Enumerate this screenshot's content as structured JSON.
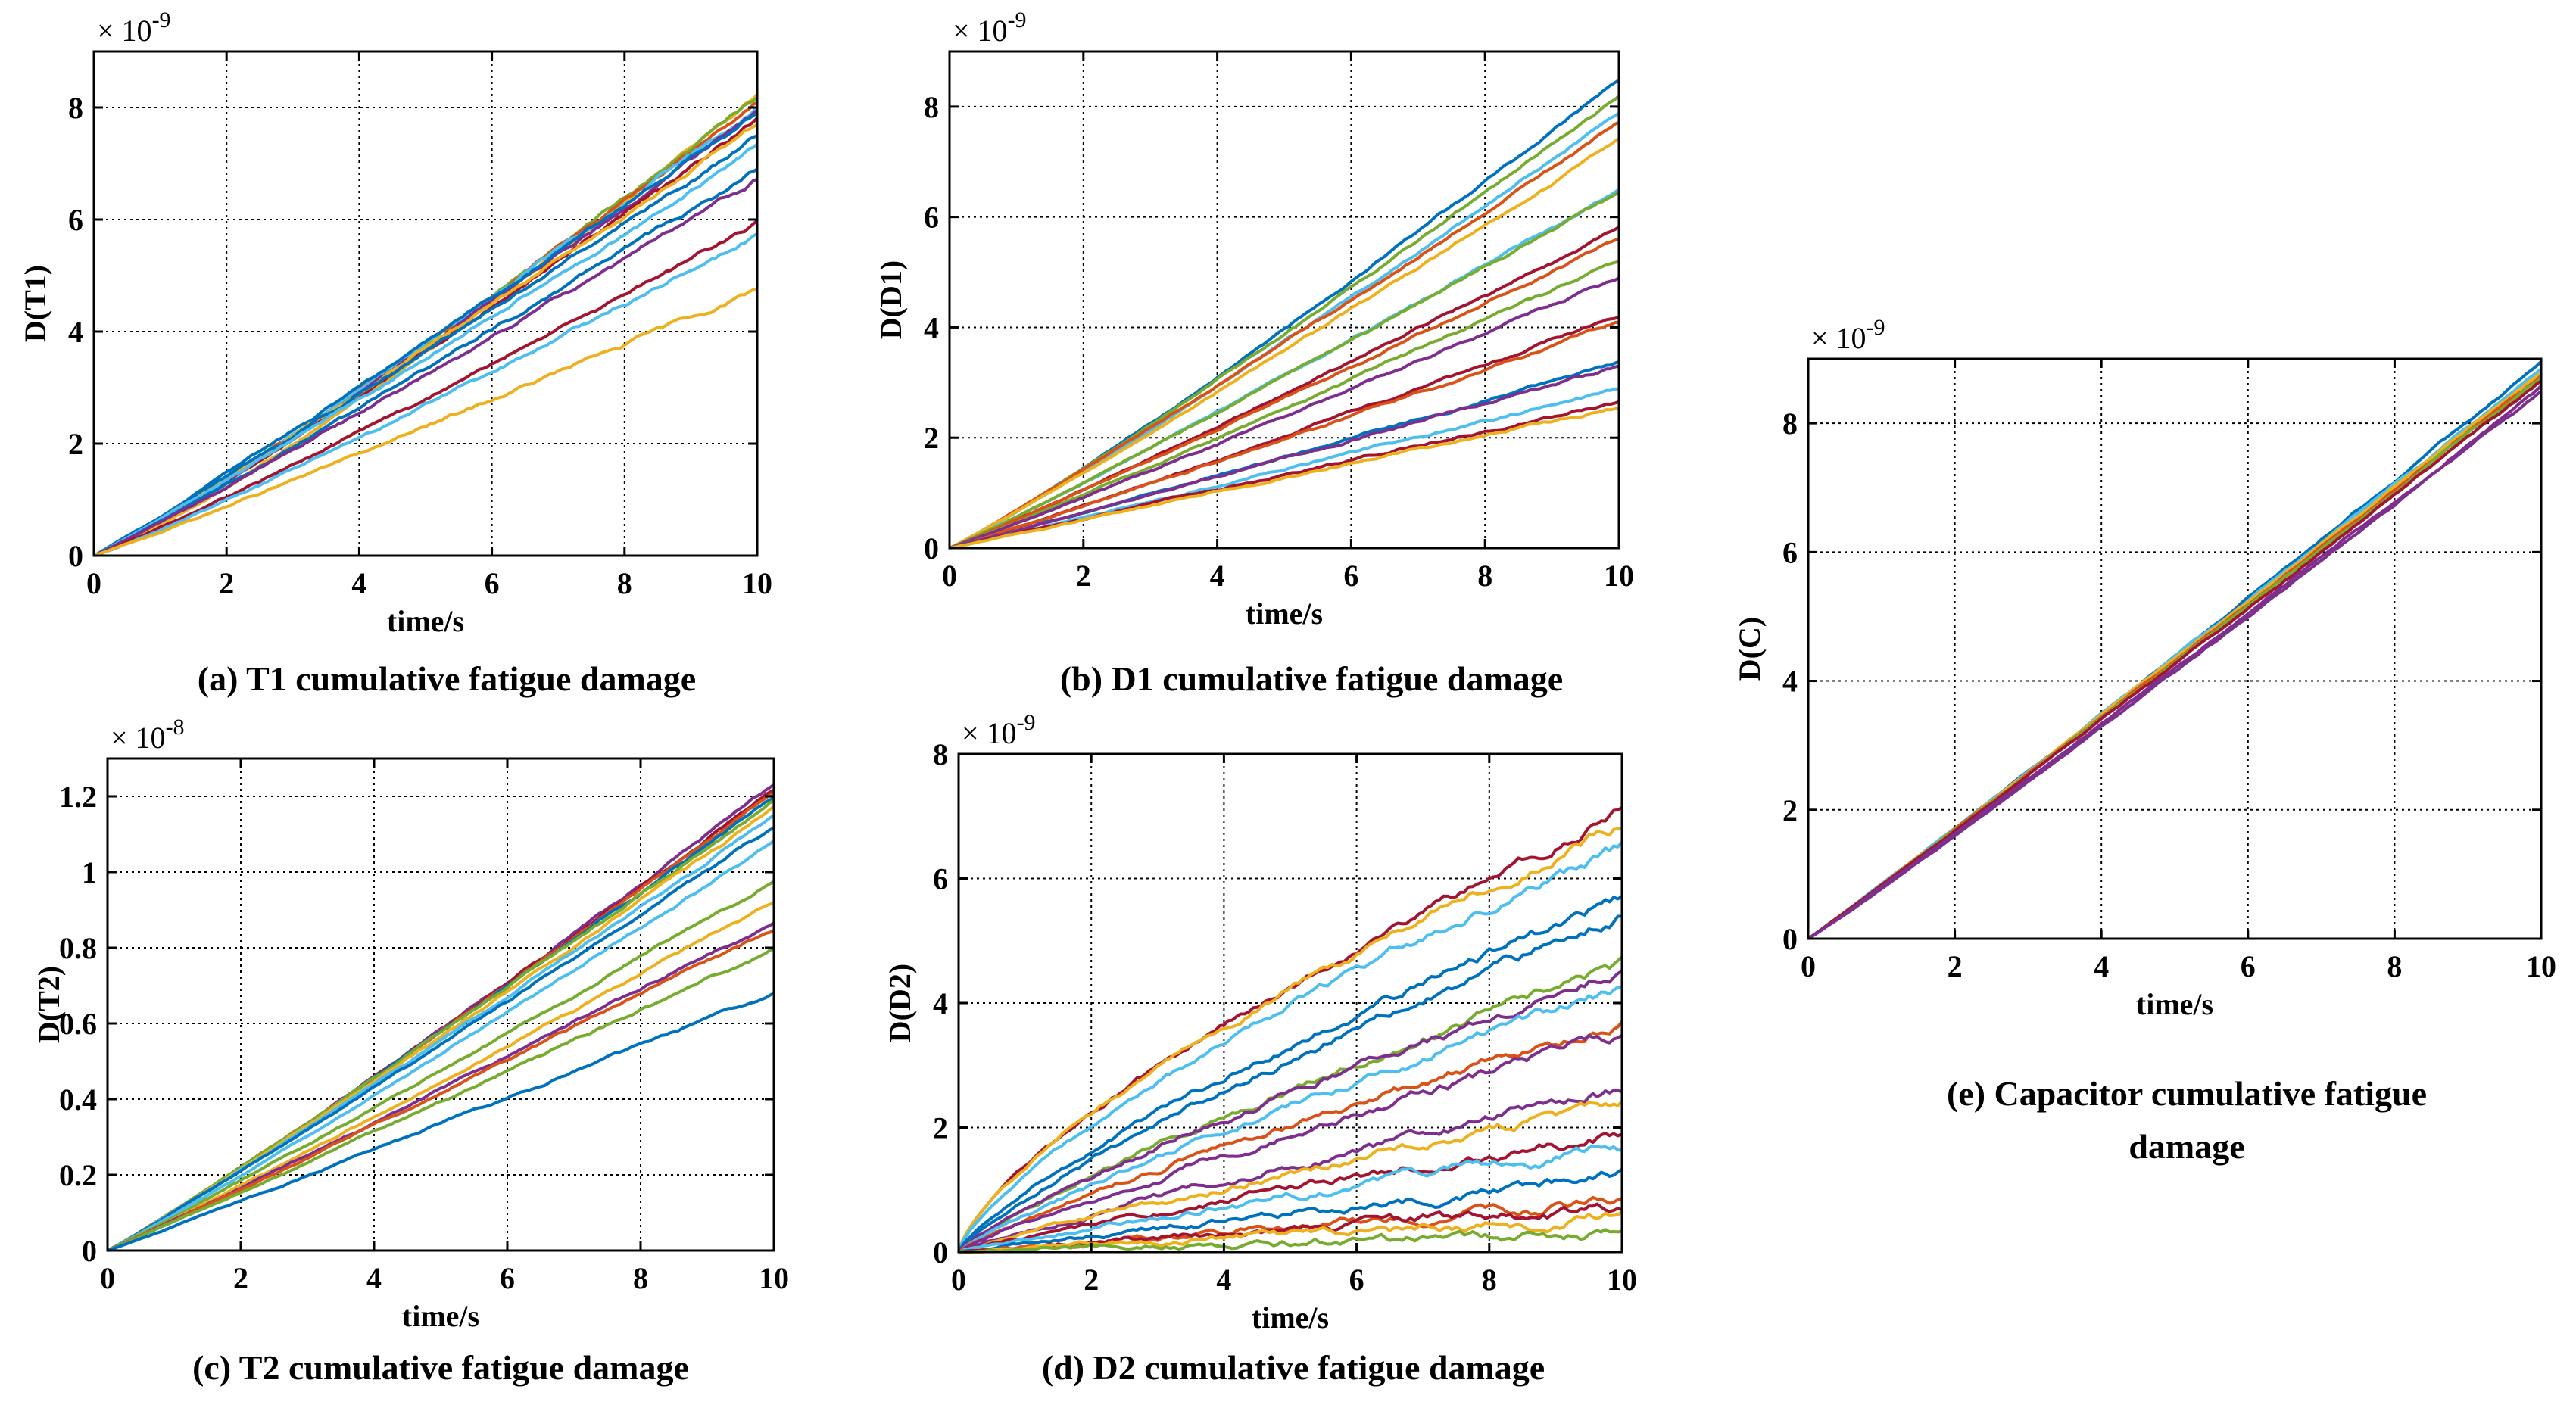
{
  "palette": [
    "#0072BD",
    "#D95319",
    "#EDB120",
    "#7E2F8E",
    "#77AC30",
    "#4DBEEE",
    "#A2142F"
  ],
  "chart_data": [
    {
      "id": "a",
      "type": "line",
      "caption": "(a) T1 cumulative fatigue damage",
      "xlabel": "time/s",
      "ylabel": "D(T1)",
      "exponent": "× 10",
      "exponent_power": "-9",
      "xlim": [
        0,
        10
      ],
      "ylim": [
        0,
        9
      ],
      "xticks": [
        0,
        2,
        4,
        6,
        8,
        10
      ],
      "yticks": [
        0,
        2,
        4,
        6,
        8
      ],
      "xtick_labels": [
        "0",
        "2",
        "4",
        "6",
        "8",
        "10"
      ],
      "ytick_labels": [
        "0",
        "2",
        "4",
        "6",
        "8"
      ],
      "grid": true,
      "noise": 0.03,
      "series": [
        {
          "end": 8.25,
          "color": "#EDB120",
          "curve": 1.18
        },
        {
          "end": 8.2,
          "color": "#77AC30",
          "curve": 1.12
        },
        {
          "end": 8.1,
          "color": "#D95319",
          "curve": 1.1
        },
        {
          "end": 8.0,
          "color": "#4DBEEE",
          "curve": 1.08
        },
        {
          "end": 7.95,
          "color": "#7E2F8E",
          "curve": 1.1
        },
        {
          "end": 7.9,
          "color": "#0072BD",
          "curve": 1.05
        },
        {
          "end": 7.8,
          "color": "#A2142F",
          "curve": 1.1
        },
        {
          "end": 7.7,
          "color": "#EDB120",
          "curve": 1.06
        },
        {
          "end": 7.5,
          "color": "#0072BD",
          "curve": 1.04
        },
        {
          "end": 7.3,
          "color": "#4DBEEE",
          "curve": 1.05
        },
        {
          "end": 6.9,
          "color": "#0072BD",
          "curve": 1.05
        },
        {
          "end": 6.75,
          "color": "#7E2F8E",
          "curve": 1.06
        },
        {
          "end": 5.95,
          "color": "#A2142F",
          "curve": 1.08
        },
        {
          "end": 5.75,
          "color": "#4DBEEE",
          "curve": 1.1
        },
        {
          "end": 4.75,
          "color": "#EDB120",
          "curve": 1.05
        }
      ]
    },
    {
      "id": "b",
      "type": "line",
      "caption": "(b) D1 cumulative fatigue damage",
      "xlabel": "time/s",
      "ylabel": "D(D1)",
      "exponent": "× 10",
      "exponent_power": "-9",
      "xlim": [
        0,
        10
      ],
      "ylim": [
        0,
        9
      ],
      "xticks": [
        0,
        2,
        4,
        6,
        8,
        10
      ],
      "yticks": [
        0,
        2,
        4,
        6,
        8
      ],
      "xtick_labels": [
        "0",
        "2",
        "4",
        "6",
        "8",
        "10"
      ],
      "ytick_labels": [
        "0",
        "2",
        "4",
        "6",
        "8"
      ],
      "grid": true,
      "noise": 0.02,
      "series": [
        {
          "end": 8.5,
          "color": "#0072BD",
          "curve": 1.1
        },
        {
          "end": 8.2,
          "color": "#77AC30",
          "curve": 1.08
        },
        {
          "end": 7.9,
          "color": "#4DBEEE",
          "curve": 1.08
        },
        {
          "end": 7.7,
          "color": "#D95319",
          "curve": 1.05
        },
        {
          "end": 7.4,
          "color": "#EDB120",
          "curve": 1.05
        },
        {
          "end": 6.5,
          "color": "#4DBEEE",
          "curve": 1.06
        },
        {
          "end": 6.45,
          "color": "#77AC30",
          "curve": 1.05
        },
        {
          "end": 5.8,
          "color": "#A2142F",
          "curve": 1.06
        },
        {
          "end": 5.6,
          "color": "#D95319",
          "curve": 1.04
        },
        {
          "end": 5.2,
          "color": "#77AC30",
          "curve": 1.04
        },
        {
          "end": 4.9,
          "color": "#7E2F8E",
          "curve": 1.04
        },
        {
          "end": 4.2,
          "color": "#A2142F",
          "curve": 1.05
        },
        {
          "end": 4.1,
          "color": "#D95319",
          "curve": 1.04
        },
        {
          "end": 3.35,
          "color": "#0072BD",
          "curve": 1.02
        },
        {
          "end": 3.3,
          "color": "#7E2F8E",
          "curve": 1.02
        },
        {
          "end": 2.9,
          "color": "#4DBEEE",
          "curve": 1.03
        },
        {
          "end": 2.65,
          "color": "#A2142F",
          "curve": 1.0
        },
        {
          "end": 2.55,
          "color": "#EDB120",
          "curve": 1.0
        }
      ]
    },
    {
      "id": "c",
      "type": "line",
      "caption": "(c) T2 cumulative fatigue damage",
      "xlabel": "time/s",
      "ylabel": "D(T2)",
      "exponent": "× 10",
      "exponent_power": "-8",
      "xlim": [
        0,
        10
      ],
      "ylim": [
        0,
        1.3
      ],
      "xticks": [
        0,
        2,
        4,
        6,
        8,
        10
      ],
      "yticks": [
        0,
        0.2,
        0.4,
        0.6,
        0.8,
        1.0,
        1.2
      ],
      "xtick_labels": [
        "0",
        "2",
        "4",
        "6",
        "8",
        "10"
      ],
      "ytick_labels": [
        "0",
        "0.2",
        "0.4",
        "0.6",
        "0.8",
        "1",
        "1.2"
      ],
      "grid": true,
      "noise": 0.003,
      "series": [
        {
          "end": 1.23,
          "color": "#7E2F8E",
          "curve": 1.08
        },
        {
          "end": 1.22,
          "color": "#A2142F",
          "curve": 1.07
        },
        {
          "end": 1.21,
          "color": "#D95319",
          "curve": 1.06
        },
        {
          "end": 1.2,
          "color": "#0072BD",
          "curve": 1.06
        },
        {
          "end": 1.19,
          "color": "#77AC30",
          "curve": 1.05
        },
        {
          "end": 1.17,
          "color": "#EDB120",
          "curve": 1.05
        },
        {
          "end": 1.15,
          "color": "#4DBEEE",
          "curve": 1.05
        },
        {
          "end": 1.12,
          "color": "#0072BD",
          "curve": 1.04
        },
        {
          "end": 1.08,
          "color": "#4DBEEE",
          "curve": 1.05
        },
        {
          "end": 0.98,
          "color": "#77AC30",
          "curve": 1.04
        },
        {
          "end": 0.92,
          "color": "#EDB120",
          "curve": 1.04
        },
        {
          "end": 0.87,
          "color": "#7E2F8E",
          "curve": 1.03
        },
        {
          "end": 0.85,
          "color": "#D95319",
          "curve": 1.03
        },
        {
          "end": 0.8,
          "color": "#77AC30",
          "curve": 1.02
        },
        {
          "end": 0.68,
          "color": "#0072BD",
          "curve": 1.02
        }
      ]
    },
    {
      "id": "d",
      "type": "line",
      "caption": "(d) D2 cumulative fatigue damage",
      "xlabel": "time/s",
      "ylabel": "D(D2)",
      "exponent": "× 10",
      "exponent_power": "-9",
      "xlim": [
        0,
        10
      ],
      "ylim": [
        0,
        8
      ],
      "xticks": [
        0,
        2,
        4,
        6,
        8,
        10
      ],
      "yticks": [
        0,
        2,
        4,
        6,
        8
      ],
      "xtick_labels": [
        "0",
        "2",
        "4",
        "6",
        "8",
        "10"
      ],
      "ytick_labels": [
        "0",
        "2",
        "4",
        "6",
        "8"
      ],
      "grid": true,
      "noise": 0.06,
      "series": [
        {
          "end": 7.05,
          "color": "#A2142F",
          "curve": 0.72
        },
        {
          "end": 6.85,
          "color": "#EDB120",
          "curve": 0.7
        },
        {
          "end": 6.5,
          "color": "#4DBEEE",
          "curve": 0.72
        },
        {
          "end": 5.7,
          "color": "#0072BD",
          "curve": 0.78
        },
        {
          "end": 5.4,
          "color": "#0072BD",
          "curve": 0.8
        },
        {
          "end": 4.6,
          "color": "#77AC30",
          "curve": 0.82
        },
        {
          "end": 4.5,
          "color": "#7E2F8E",
          "curve": 0.82
        },
        {
          "end": 4.25,
          "color": "#4DBEEE",
          "curve": 0.85
        },
        {
          "end": 3.7,
          "color": "#D95319",
          "curve": 0.85
        },
        {
          "end": 3.5,
          "color": "#7E2F8E",
          "curve": 0.88
        },
        {
          "end": 2.6,
          "color": "#7E2F8E",
          "curve": 0.9
        },
        {
          "end": 2.35,
          "color": "#EDB120",
          "curve": 0.9
        },
        {
          "end": 1.9,
          "color": "#A2142F",
          "curve": 0.92
        },
        {
          "end": 1.7,
          "color": "#4DBEEE",
          "curve": 0.92
        },
        {
          "end": 1.2,
          "color": "#0072BD",
          "curve": 0.95
        },
        {
          "end": 0.8,
          "color": "#D95319",
          "curve": 0.97
        },
        {
          "end": 0.7,
          "color": "#A2142F",
          "curve": 0.97
        },
        {
          "end": 0.55,
          "color": "#EDB120",
          "curve": 0.98
        },
        {
          "end": 0.3,
          "color": "#77AC30",
          "curve": 1.0
        }
      ]
    },
    {
      "id": "e",
      "type": "line",
      "caption": "(e) Capacitor cumulative fatigue damage",
      "xlabel": "time/s",
      "ylabel": "D(C)",
      "exponent": "× 10",
      "exponent_power": "-9",
      "xlim": [
        0,
        10
      ],
      "ylim": [
        0,
        9
      ],
      "xticks": [
        0,
        2,
        4,
        6,
        8,
        10
      ],
      "yticks": [
        0,
        2,
        4,
        6,
        8
      ],
      "xtick_labels": [
        "0",
        "2",
        "4",
        "6",
        "8",
        "10"
      ],
      "ytick_labels": [
        "0",
        "2",
        "4",
        "6",
        "8"
      ],
      "grid": true,
      "noise": 0.015,
      "series": [
        {
          "end": 8.95,
          "color": "#0072BD",
          "curve": 1.03
        },
        {
          "end": 8.85,
          "color": "#4DBEEE",
          "curve": 1.02
        },
        {
          "end": 8.8,
          "color": "#EDB120",
          "curve": 1.02
        },
        {
          "end": 8.75,
          "color": "#D95319",
          "curve": 1.02
        },
        {
          "end": 8.7,
          "color": "#77AC30",
          "curve": 1.02
        },
        {
          "end": 8.65,
          "color": "#A2142F",
          "curve": 1.02
        },
        {
          "end": 8.55,
          "color": "#7E2F8E",
          "curve": 1.03
        },
        {
          "end": 8.5,
          "color": "#7E2F8E",
          "curve": 1.04
        }
      ]
    }
  ]
}
